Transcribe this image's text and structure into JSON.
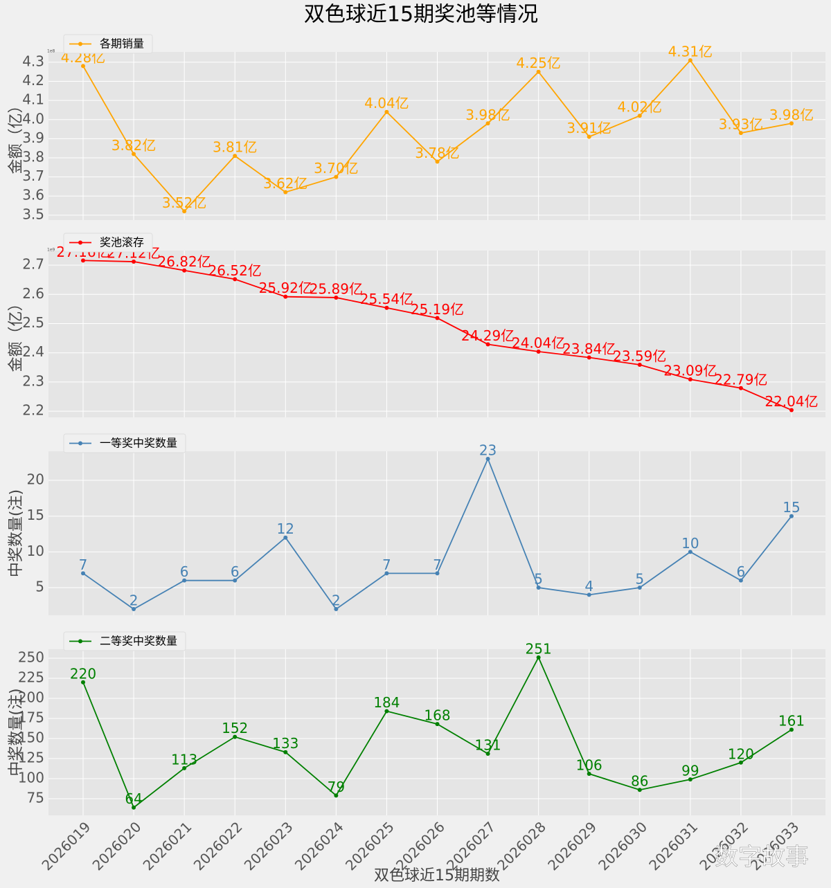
{
  "title": "双色球近15期奖池等情况",
  "watermark": "数字故事",
  "chart_data": [
    {
      "type": "line",
      "ylabel": "金额（亿）",
      "y_offset_label": "1e8",
      "ylim": [
        3.474,
        4.354
      ],
      "yticks": [
        3.5,
        3.6,
        3.7,
        3.8,
        3.9,
        {
          "value": 4,
          "label": "4.0"
        },
        4.1,
        4.2,
        4.3
      ],
      "legend": "upper left",
      "grid": true,
      "series": [
        {
          "name": "各期销量",
          "color": "#ffa500",
          "values": [
            4.28,
            3.82,
            3.52,
            3.81,
            3.62,
            3.7,
            4.04,
            3.78,
            3.98,
            4.25,
            3.91,
            4.02,
            4.31,
            3.93,
            3.98
          ],
          "value_labels": [
            "4.28亿",
            "3.82亿",
            "3.52亿",
            "3.81亿",
            "3.62亿",
            "3.70亿",
            "4.04亿",
            "3.78亿",
            "3.98亿",
            "4.25亿",
            "3.91亿",
            "4.02亿",
            "4.31亿",
            "3.93亿",
            "3.98亿"
          ]
        }
      ]
    },
    {
      "type": "line",
      "ylabel": "金额（亿）",
      "y_offset_label": "1e9",
      "ylim": [
        2.179,
        2.75
      ],
      "yticks": [
        2.2,
        2.3,
        2.4,
        2.5,
        2.6,
        2.7
      ],
      "legend": "upper left",
      "grid": true,
      "series": [
        {
          "name": "奖池滚存",
          "color": "#ff0000",
          "values": [
            2.716,
            2.712,
            2.682,
            2.652,
            2.592,
            2.589,
            2.554,
            2.519,
            2.429,
            2.404,
            2.384,
            2.359,
            2.309,
            2.279,
            2.204
          ],
          "value_labels": [
            "27.16亿",
            "27.12亿",
            "26.82亿",
            "26.52亿",
            "25.92亿",
            "25.89亿",
            "25.54亿",
            "25.19亿",
            "24.29亿",
            "24.04亿",
            "23.84亿",
            "23.59亿",
            "23.09亿",
            "22.79亿",
            "22.04亿"
          ]
        }
      ]
    },
    {
      "type": "line",
      "ylabel": "中奖数量(注)",
      "ylim": [
        1.13,
        24.07
      ],
      "yticks": [
        5,
        10,
        15,
        20
      ],
      "legend": "upper left",
      "grid": true,
      "series": [
        {
          "name": "一等奖中奖数量",
          "color": "#4682b4",
          "values": [
            7,
            2,
            6,
            6,
            12,
            2,
            7,
            7,
            23,
            5,
            4,
            5,
            10,
            6,
            15
          ]
        }
      ]
    },
    {
      "type": "line",
      "ylabel": "中奖数量(注)",
      "xlabel": "双色球近15期期数",
      "categories": [
        "2026019",
        "2026020",
        "2026021",
        "2026022",
        "2026023",
        "2026024",
        "2026025",
        "2026026",
        "2026027",
        "2026028",
        "2026029",
        "2026030",
        "2026031",
        "2026032",
        "2026033"
      ],
      "ylim": [
        54.3,
        261.2
      ],
      "yticks": [
        75,
        100,
        125,
        150,
        175,
        200,
        225,
        250
      ],
      "legend": "upper left",
      "grid": true,
      "series": [
        {
          "name": "二等奖中奖数量",
          "color": "#008000",
          "values": [
            220,
            64,
            113,
            152,
            133,
            79,
            184,
            168,
            131,
            251,
            106,
            86,
            99,
            120,
            161
          ]
        }
      ]
    }
  ]
}
